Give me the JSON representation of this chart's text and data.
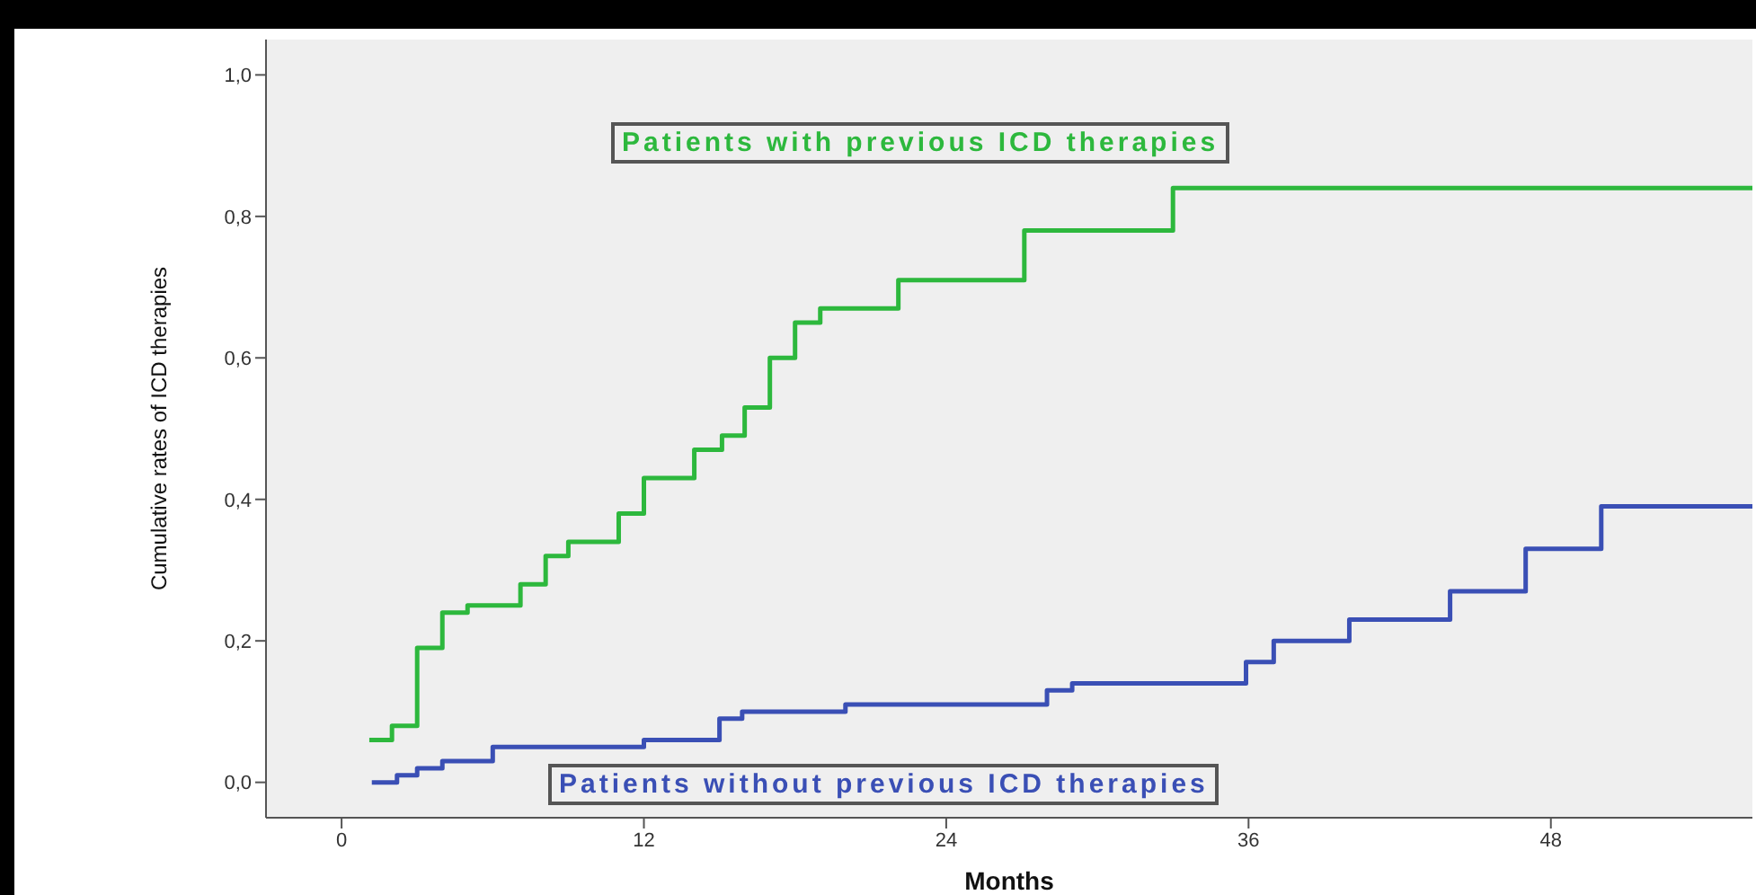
{
  "chart_data": {
    "type": "step",
    "xlabel": "Months",
    "ylabel": "Cumulative rates of ICD therapies",
    "xlim": [
      -3,
      56
    ],
    "xticks": [
      0,
      12,
      24,
      36,
      48
    ],
    "ylim": [
      -0.05,
      1.05
    ],
    "yticks": [
      {
        "value": 0,
        "label": "0,0"
      },
      {
        "value": 0.2,
        "label": "0,2"
      },
      {
        "value": 0.4,
        "label": "0,4"
      },
      {
        "value": 0.6,
        "label": "0,6"
      },
      {
        "value": 0.8,
        "label": "0,8"
      },
      {
        "value": 1.0,
        "label": "1,0"
      }
    ],
    "grid": false,
    "line_style": "solid",
    "series": [
      {
        "name": "Patients with previous ICD therapies",
        "color": "#2db83d",
        "x": [
          1.1,
          2.0,
          3.0,
          4.0,
          5.0,
          7.1,
          8.1,
          9.0,
          11.0,
          12.0,
          14.0,
          15.1,
          16.0,
          17.0,
          18.0,
          19.0,
          22.1,
          27.1,
          33.0,
          56
        ],
        "values": [
          0.06,
          0.08,
          0.19,
          0.24,
          0.25,
          0.28,
          0.32,
          0.34,
          0.38,
          0.43,
          0.47,
          0.49,
          0.53,
          0.6,
          0.65,
          0.67,
          0.71,
          0.78,
          0.84,
          0.84
        ]
      },
      {
        "name": "Patients without previous ICD therapies",
        "color": "#3a4fb5",
        "x": [
          1.2,
          2.2,
          3.0,
          4.0,
          5.0,
          6.0,
          12.0,
          15.0,
          15.9,
          20.0,
          28.0,
          29.0,
          35.9,
          37.0,
          40.0,
          44.0,
          47.0,
          50.0,
          56
        ],
        "values": [
          0.0,
          0.01,
          0.02,
          0.03,
          0.03,
          0.05,
          0.06,
          0.09,
          0.1,
          0.11,
          0.13,
          0.14,
          0.17,
          0.2,
          0.23,
          0.27,
          0.33,
          0.39,
          0.39
        ]
      }
    ]
  }
}
